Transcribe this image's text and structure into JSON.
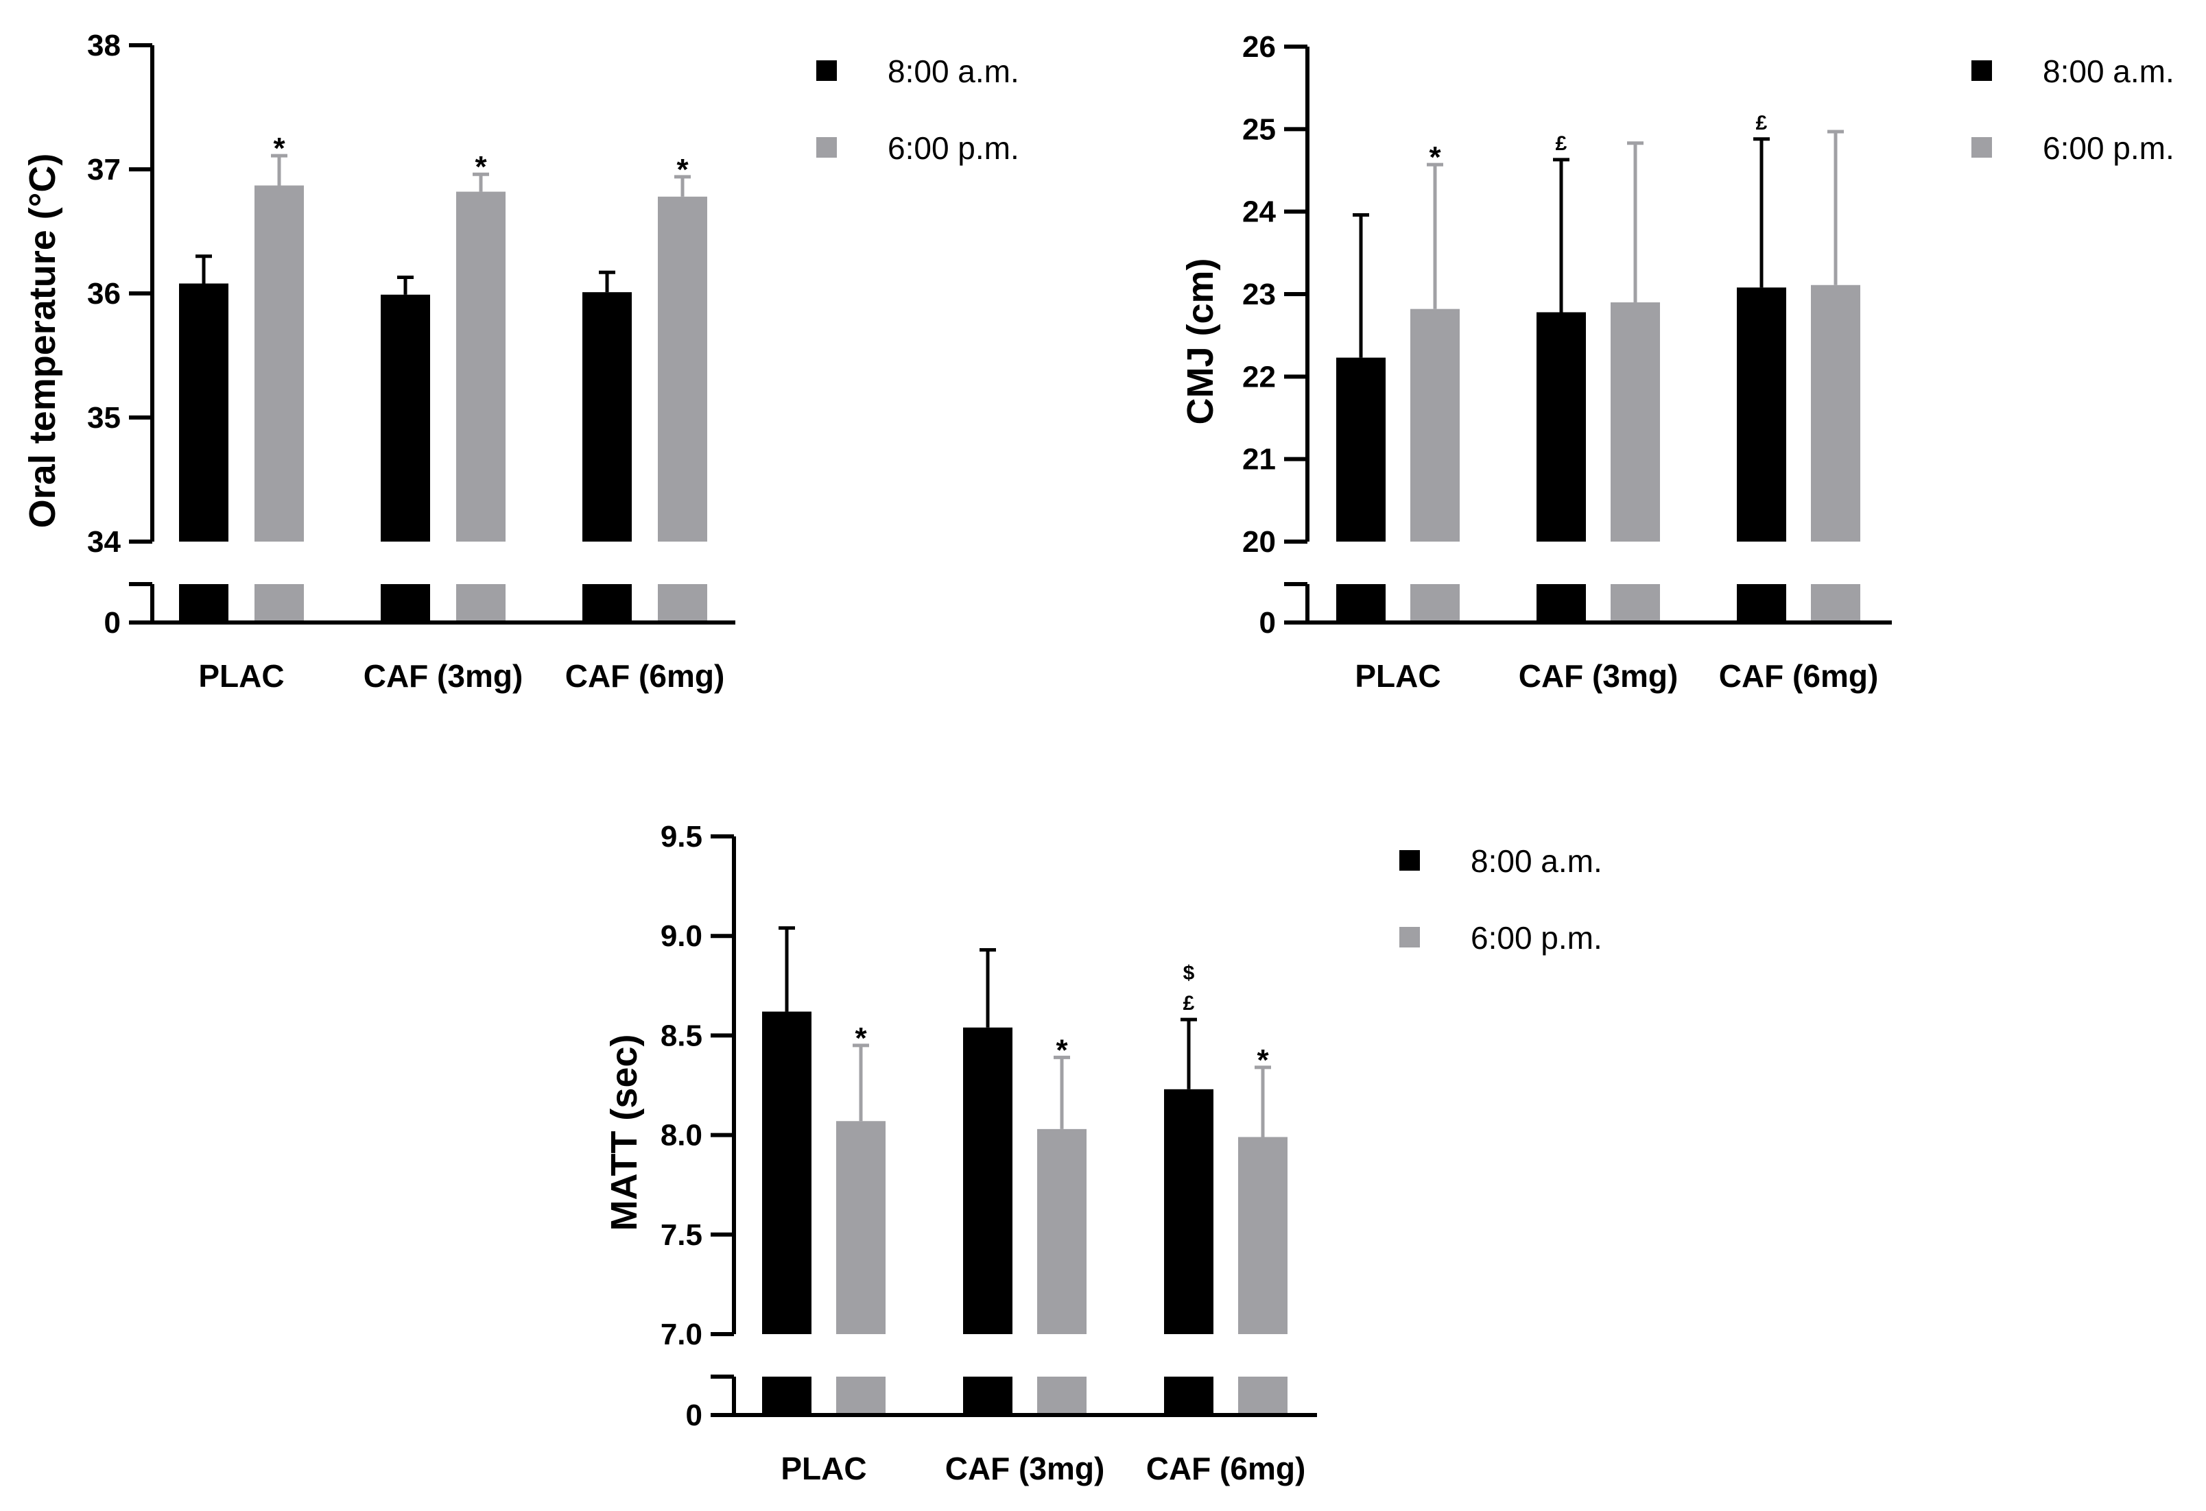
{
  "chart_data": [
    {
      "type": "bar",
      "title": "",
      "xlabel": "",
      "ylabel": "Oral temperature (°C)",
      "categories": [
        "PLAC",
        "CAF (3mg)",
        "CAF (6mg)"
      ],
      "ylim": [
        34,
        38
      ],
      "yticks": [
        "34",
        "35",
        "36",
        "37",
        "38"
      ],
      "break_tick": "0",
      "series": [
        {
          "name": "8:00 a.m.",
          "color": "#000000",
          "values": [
            36.08,
            35.99,
            36.01
          ],
          "errors": [
            0.22,
            0.14,
            0.16
          ],
          "annotations": [
            "",
            "",
            ""
          ]
        },
        {
          "name": "6:00 p.m.",
          "color": "#a0a0a4",
          "values": [
            36.87,
            36.82,
            36.78
          ],
          "errors": [
            0.24,
            0.14,
            0.16
          ],
          "annotations": [
            "*",
            "*",
            "*"
          ]
        }
      ],
      "legend": "top-right"
    },
    {
      "type": "bar",
      "title": "",
      "xlabel": "",
      "ylabel": "CMJ (cm)",
      "categories": [
        "PLAC",
        "CAF (3mg)",
        "CAF (6mg)"
      ],
      "ylim": [
        20,
        26
      ],
      "yticks": [
        "20",
        "21",
        "22",
        "23",
        "24",
        "25",
        "26"
      ],
      "break_tick": "0",
      "series": [
        {
          "name": "8:00 a.m.",
          "color": "#000000",
          "values": [
            22.23,
            22.78,
            23.08
          ],
          "errors": [
            1.73,
            1.85,
            1.8
          ],
          "annotations": [
            "",
            "£",
            "£"
          ]
        },
        {
          "name": "6:00 p.m.",
          "color": "#a0a0a4",
          "values": [
            22.82,
            22.9,
            23.11
          ],
          "errors": [
            1.75,
            1.93,
            1.86
          ],
          "annotations": [
            "*",
            "",
            ""
          ]
        }
      ],
      "legend": "top-right"
    },
    {
      "type": "bar",
      "title": "",
      "xlabel": "",
      "ylabel": "MATT (sec)",
      "categories": [
        "PLAC",
        "CAF (3mg)",
        "CAF (6mg)"
      ],
      "ylim": [
        7.0,
        9.5
      ],
      "yticks": [
        "7.0",
        "7.5",
        "8.0",
        "8.5",
        "9.0",
        "9.5"
      ],
      "break_tick": "0",
      "series": [
        {
          "name": "8:00 a.m.",
          "color": "#000000",
          "values": [
            8.62,
            8.54,
            8.23
          ],
          "errors": [
            0.42,
            0.39,
            0.35
          ],
          "annotations": [
            "",
            "",
            "$\n£"
          ]
        },
        {
          "name": "6:00 p.m.",
          "color": "#a0a0a4",
          "values": [
            8.07,
            8.03,
            7.99
          ],
          "errors": [
            0.38,
            0.36,
            0.35
          ],
          "annotations": [
            "*",
            "*",
            "*"
          ]
        }
      ],
      "legend": "top-right"
    }
  ]
}
